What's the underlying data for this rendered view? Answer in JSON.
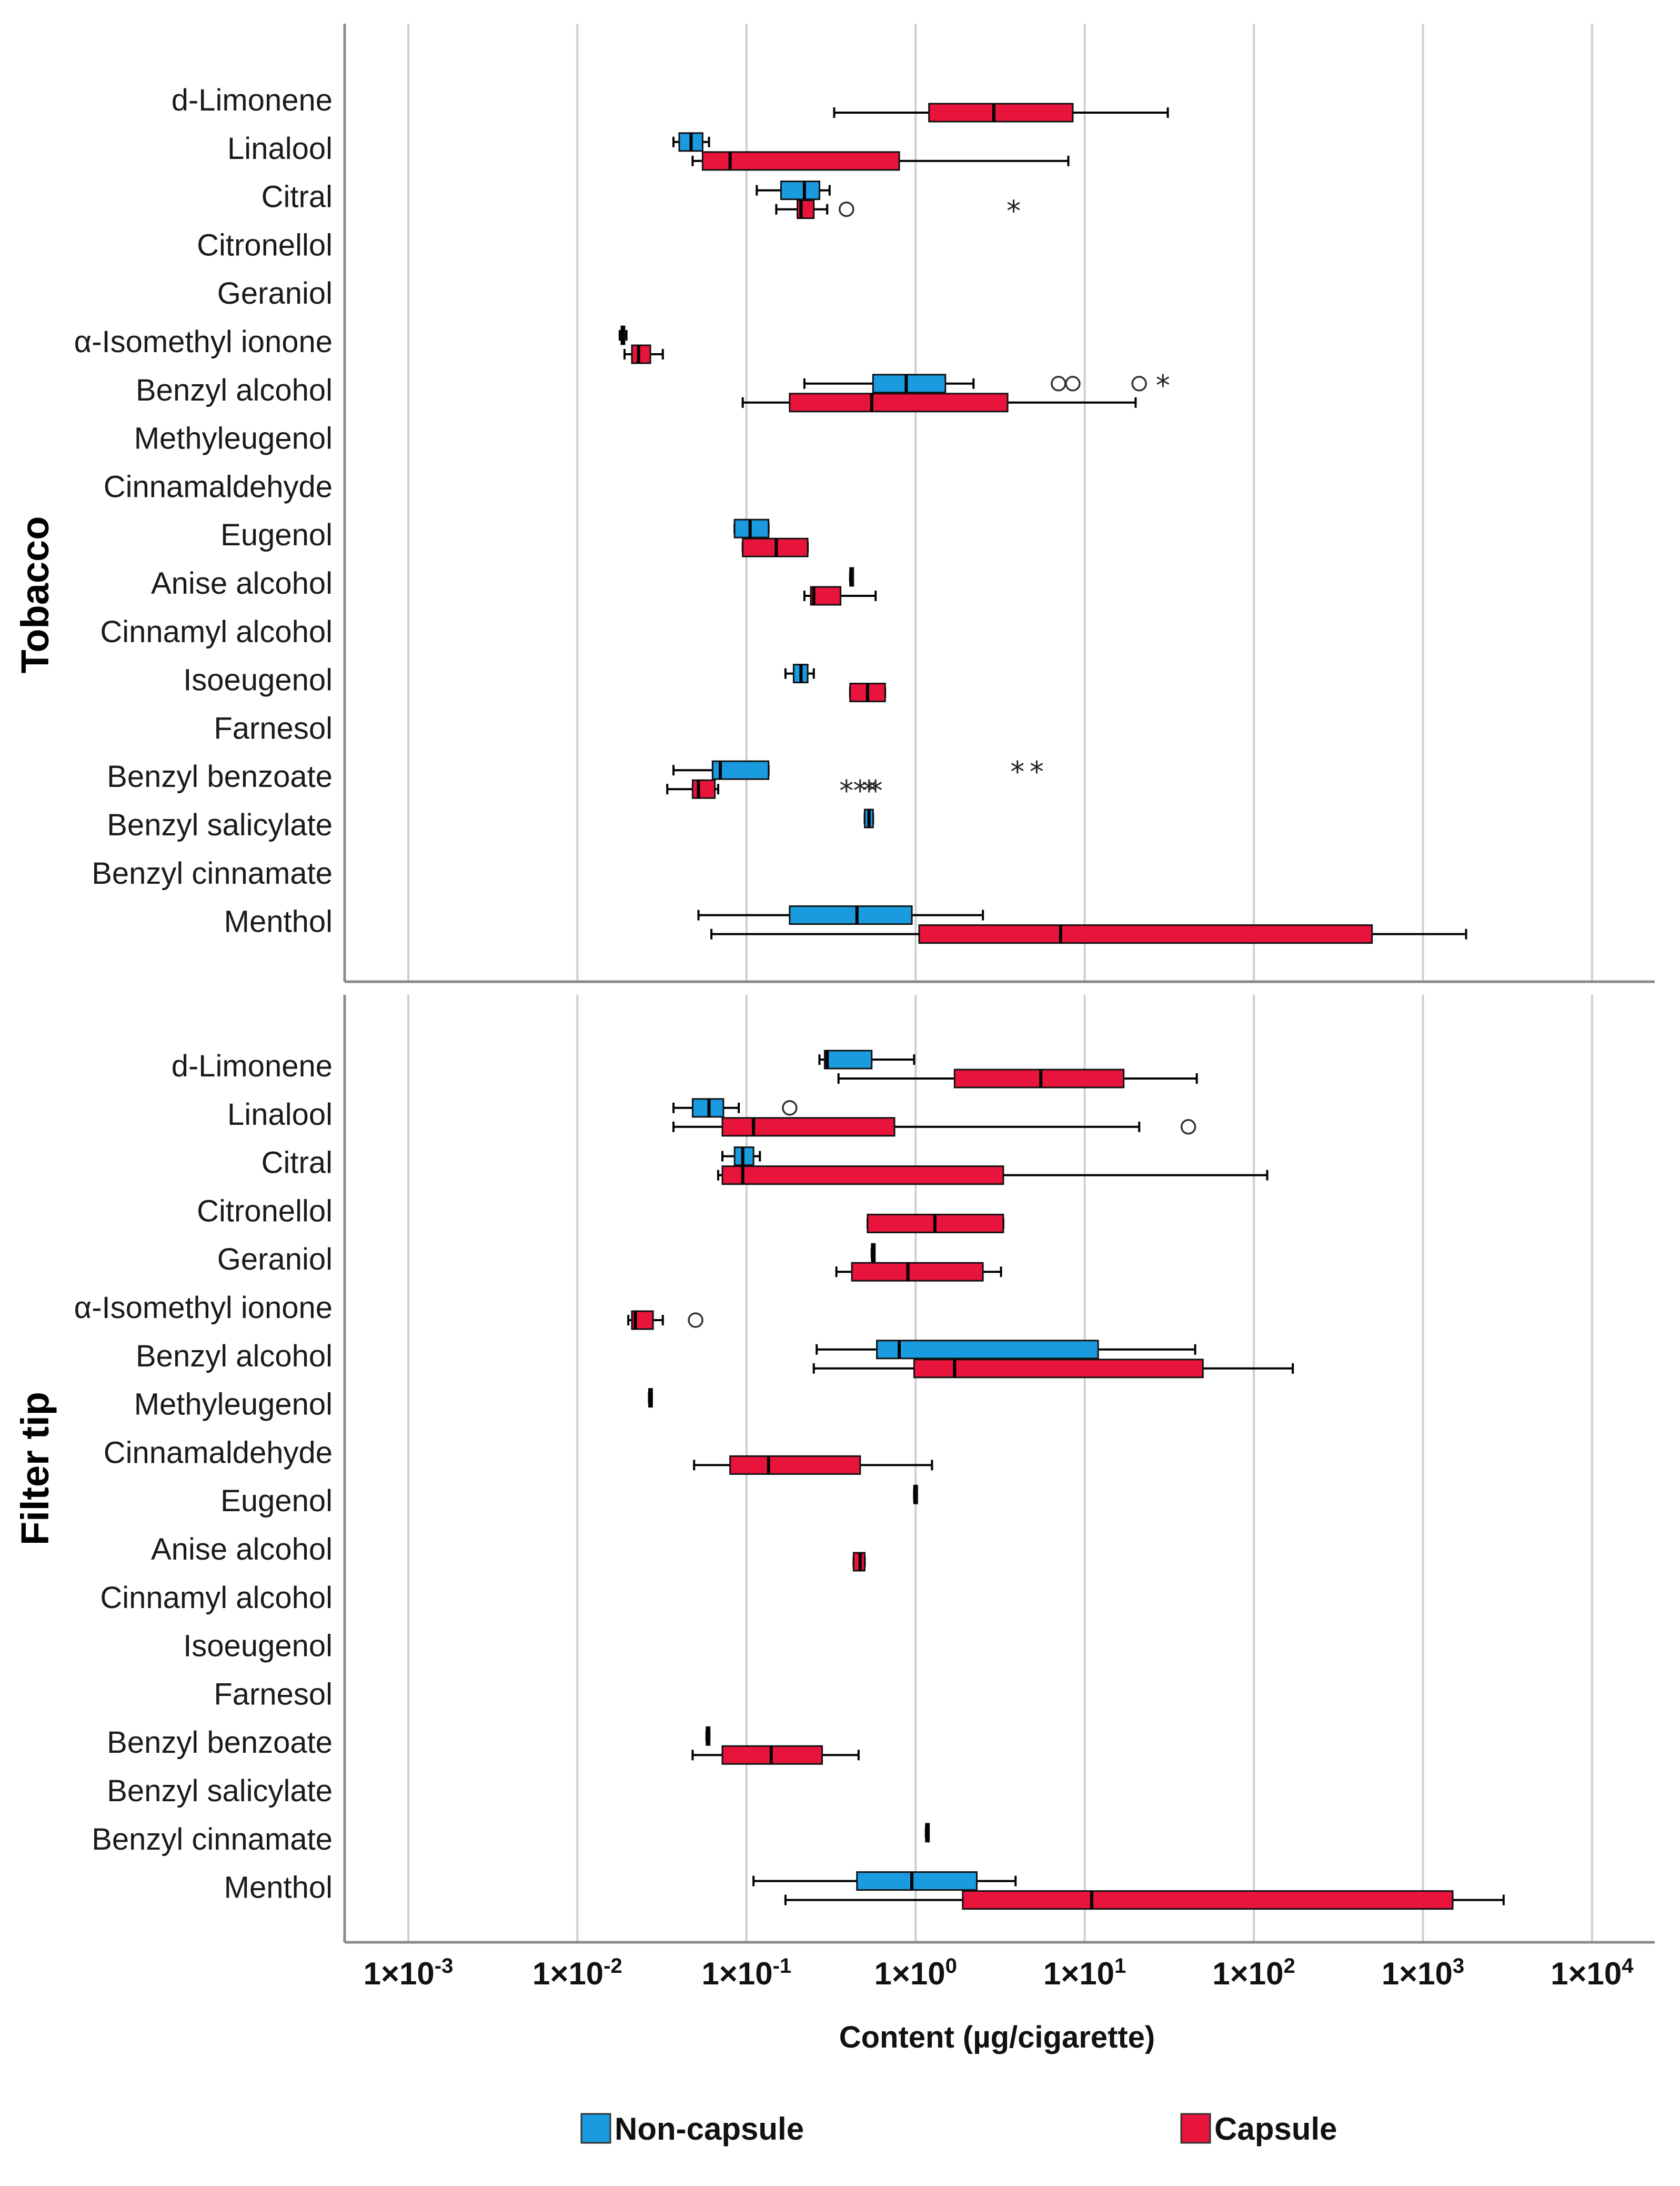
{
  "chart_data": {
    "type": "box",
    "orientation": "horizontal",
    "xscale": "log",
    "xlim": [
      0.0003,
      50000
    ],
    "xlabel": "Content (µg/cigarette)",
    "xticks": [
      {
        "value": 0.001,
        "base": "1×10",
        "exp": "-3"
      },
      {
        "value": 0.01,
        "base": "1×10",
        "exp": "-2"
      },
      {
        "value": 0.1,
        "base": "1×10",
        "exp": "-1"
      },
      {
        "value": 1,
        "base": "1×10",
        "exp": "0"
      },
      {
        "value": 10,
        "base": "1×10",
        "exp": "1"
      },
      {
        "value": 100,
        "base": "1×10",
        "exp": "2"
      },
      {
        "value": 1000,
        "base": "1×10",
        "exp": "3"
      },
      {
        "value": 10000,
        "base": "1×10",
        "exp": "4"
      }
    ],
    "grid": true,
    "legend": {
      "position": "bottom",
      "entries": [
        {
          "name": "Non-capsule",
          "color": "#1a9be0"
        },
        {
          "name": "Capsule",
          "color": "#e8143c"
        }
      ]
    },
    "categories": [
      "d-Limonene",
      "Linalool",
      "Citral",
      "Citronellol",
      "Geraniol",
      "α-Isomethyl ionone",
      "Benzyl alcohol",
      "Methyleugenol",
      "Cinnamaldehyde",
      "Eugenol",
      "Anise alcohol",
      "Cinnamyl alcohol",
      "Isoeugenol",
      "Farnesol",
      "Benzyl benzoate",
      "Benzyl salicylate",
      "Benzyl cinnamate",
      "Menthol"
    ],
    "panels": [
      {
        "title": "Tobacco",
        "series": [
          {
            "name": "Non-capsule",
            "boxes": [
              {
                "category": "Linalool",
                "whislo": 0.037,
                "q1": 0.04,
                "med": 0.047,
                "q3": 0.055,
                "whishi": 0.06,
                "fliers": []
              },
              {
                "category": "Citral",
                "whislo": 0.115,
                "q1": 0.16,
                "med": 0.22,
                "q3": 0.27,
                "whishi": 0.31,
                "fliers": []
              },
              {
                "category": "α-Isomethyl ionone",
                "whislo": 0.0178,
                "q1": 0.0182,
                "med": 0.0185,
                "q3": 0.019,
                "whishi": 0.0195,
                "fliers": []
              },
              {
                "category": "Benzyl alcohol",
                "whislo": 0.22,
                "q1": 0.56,
                "med": 0.88,
                "q3": 1.5,
                "whishi": 2.2,
                "fliers": [
                  {
                    "value": 7,
                    "marker": "circle"
                  },
                  {
                    "value": 8.5,
                    "marker": "circle"
                  },
                  {
                    "value": 21,
                    "marker": "circle"
                  },
                  {
                    "value": 29,
                    "marker": "star"
                  }
                ]
              },
              {
                "category": "Eugenol",
                "whislo": 0.085,
                "q1": 0.085,
                "med": 0.105,
                "q3": 0.135,
                "whishi": 0.135,
                "fliers": []
              },
              {
                "category": "Anise alcohol",
                "whislo": 0.41,
                "q1": 0.41,
                "med": 0.415,
                "q3": 0.42,
                "whishi": 0.42,
                "fliers": []
              },
              {
                "category": "Isoeugenol",
                "whislo": 0.17,
                "q1": 0.19,
                "med": 0.21,
                "q3": 0.23,
                "whishi": 0.25,
                "fliers": []
              },
              {
                "category": "Benzyl benzoate",
                "whislo": 0.037,
                "q1": 0.063,
                "med": 0.07,
                "q3": 0.135,
                "whishi": 0.135,
                "fliers": [
                  {
                    "value": 4,
                    "marker": "star"
                  },
                  {
                    "value": 5.2,
                    "marker": "star"
                  }
                ]
              },
              {
                "category": "Benzyl salicylate",
                "whislo": 0.5,
                "q1": 0.5,
                "med": 0.53,
                "q3": 0.56,
                "whishi": 0.56,
                "fliers": []
              },
              {
                "category": "Menthol",
                "whislo": 0.052,
                "q1": 0.18,
                "med": 0.45,
                "q3": 0.95,
                "whishi": 2.5,
                "fliers": []
              }
            ]
          },
          {
            "name": "Capsule",
            "boxes": [
              {
                "category": "d-Limonene",
                "whislo": 0.33,
                "q1": 1.2,
                "med": 2.9,
                "q3": 8.5,
                "whishi": 31,
                "fliers": []
              },
              {
                "category": "Linalool",
                "whislo": 0.048,
                "q1": 0.055,
                "med": 0.08,
                "q3": 0.8,
                "whishi": 8,
                "fliers": []
              },
              {
                "category": "Citral",
                "whislo": 0.15,
                "q1": 0.2,
                "med": 0.21,
                "q3": 0.25,
                "whishi": 0.3,
                "fliers": [
                  {
                    "value": 0.39,
                    "marker": "circle"
                  },
                  {
                    "value": 3.8,
                    "marker": "star"
                  }
                ]
              },
              {
                "category": "α-Isomethyl ionone",
                "whislo": 0.019,
                "q1": 0.021,
                "med": 0.023,
                "q3": 0.027,
                "whishi": 0.032,
                "fliers": []
              },
              {
                "category": "Benzyl alcohol",
                "whislo": 0.095,
                "q1": 0.18,
                "med": 0.55,
                "q3": 3.5,
                "whishi": 20,
                "fliers": []
              },
              {
                "category": "Eugenol",
                "whislo": 0.095,
                "q1": 0.095,
                "med": 0.15,
                "q3": 0.23,
                "whishi": 0.23,
                "fliers": []
              },
              {
                "category": "Anise alcohol",
                "whislo": 0.22,
                "q1": 0.24,
                "med": 0.25,
                "q3": 0.36,
                "whishi": 0.58,
                "fliers": []
              },
              {
                "category": "Isoeugenol",
                "whislo": 0.41,
                "q1": 0.41,
                "med": 0.52,
                "q3": 0.66,
                "whishi": 0.66,
                "fliers": []
              },
              {
                "category": "Benzyl benzoate",
                "whislo": 0.034,
                "q1": 0.048,
                "med": 0.052,
                "q3": 0.065,
                "whishi": 0.068,
                "fliers": [
                  {
                    "value": 0.39,
                    "marker": "star"
                  },
                  {
                    "value": 0.47,
                    "marker": "star"
                  },
                  {
                    "value": 0.53,
                    "marker": "star"
                  },
                  {
                    "value": 0.58,
                    "marker": "star"
                  }
                ]
              },
              {
                "category": "Menthol",
                "whislo": 0.062,
                "q1": 1.05,
                "med": 7.2,
                "q3": 500,
                "whishi": 1800,
                "fliers": []
              }
            ]
          }
        ]
      },
      {
        "title": "Filter tip",
        "series": [
          {
            "name": "Non-capsule",
            "boxes": [
              {
                "category": "d-Limonene",
                "whislo": 0.27,
                "q1": 0.29,
                "med": 0.3,
                "q3": 0.55,
                "whishi": 0.98,
                "fliers": []
              },
              {
                "category": "Linalool",
                "whislo": 0.037,
                "q1": 0.048,
                "med": 0.06,
                "q3": 0.073,
                "whishi": 0.09,
                "fliers": [
                  {
                    "value": 0.18,
                    "marker": "circle"
                  }
                ]
              },
              {
                "category": "Citral",
                "whislo": 0.072,
                "q1": 0.085,
                "med": 0.095,
                "q3": 0.11,
                "whishi": 0.12,
                "fliers": []
              },
              {
                "category": "Geraniol",
                "whislo": 0.55,
                "q1": 0.55,
                "med": 0.56,
                "q3": 0.57,
                "whishi": 0.57,
                "fliers": []
              },
              {
                "category": "Benzyl alcohol",
                "whislo": 0.26,
                "q1": 0.59,
                "med": 0.8,
                "q3": 12,
                "whishi": 45,
                "fliers": []
              },
              {
                "category": "Methyleugenol",
                "whislo": 0.0265,
                "q1": 0.0265,
                "med": 0.027,
                "q3": 0.0275,
                "whishi": 0.0275,
                "fliers": []
              },
              {
                "category": "Eugenol",
                "whislo": 0.98,
                "q1": 0.98,
                "med": 0.99,
                "q3": 1.0,
                "whishi": 1.0,
                "fliers": []
              },
              {
                "category": "Benzyl benzoate",
                "whislo": 0.058,
                "q1": 0.058,
                "med": 0.059,
                "q3": 0.06,
                "whishi": 0.06,
                "fliers": []
              },
              {
                "category": "Benzyl cinnamate",
                "whislo": 1.15,
                "q1": 1.15,
                "med": 1.17,
                "q3": 1.19,
                "whishi": 1.19,
                "fliers": []
              },
              {
                "category": "Menthol",
                "whislo": 0.11,
                "q1": 0.45,
                "med": 0.95,
                "q3": 2.3,
                "whishi": 3.9,
                "fliers": []
              }
            ]
          },
          {
            "name": "Capsule",
            "boxes": [
              {
                "category": "d-Limonene",
                "whislo": 0.35,
                "q1": 1.7,
                "med": 5.5,
                "q3": 17,
                "whishi": 46,
                "fliers": []
              },
              {
                "category": "Linalool",
                "whislo": 0.037,
                "q1": 0.072,
                "med": 0.11,
                "q3": 0.75,
                "whishi": 21,
                "fliers": [
                  {
                    "value": 41,
                    "marker": "circle"
                  }
                ]
              },
              {
                "category": "Citral",
                "whislo": 0.068,
                "q1": 0.072,
                "med": 0.095,
                "q3": 3.3,
                "whishi": 120,
                "fliers": []
              },
              {
                "category": "Citronellol",
                "whislo": 0.52,
                "q1": 0.52,
                "med": 1.3,
                "q3": 3.3,
                "whishi": 3.3,
                "fliers": []
              },
              {
                "category": "Geraniol",
                "whislo": 0.34,
                "q1": 0.42,
                "med": 0.9,
                "q3": 2.5,
                "whishi": 3.2,
                "fliers": []
              },
              {
                "category": "α-Isomethyl ionone",
                "whislo": 0.02,
                "q1": 0.021,
                "med": 0.022,
                "q3": 0.028,
                "whishi": 0.032,
                "fliers": [
                  {
                    "value": 0.05,
                    "marker": "circle"
                  }
                ]
              },
              {
                "category": "Benzyl alcohol",
                "whislo": 0.25,
                "q1": 0.98,
                "med": 1.7,
                "q3": 50,
                "whishi": 170,
                "fliers": []
              },
              {
                "category": "Cinnamaldehyde",
                "whislo": 0.049,
                "q1": 0.08,
                "med": 0.135,
                "q3": 0.47,
                "whishi": 1.25,
                "fliers": []
              },
              {
                "category": "Anise alcohol",
                "whislo": 0.43,
                "q1": 0.43,
                "med": 0.47,
                "q3": 0.5,
                "whishi": 0.5,
                "fliers": []
              },
              {
                "category": "Benzyl benzoate",
                "whislo": 0.048,
                "q1": 0.072,
                "med": 0.14,
                "q3": 0.28,
                "whishi": 0.46,
                "fliers": []
              },
              {
                "category": "Menthol",
                "whislo": 0.17,
                "q1": 1.9,
                "med": 11,
                "q3": 1500,
                "whishi": 3000,
                "fliers": []
              }
            ]
          }
        ]
      }
    ]
  }
}
